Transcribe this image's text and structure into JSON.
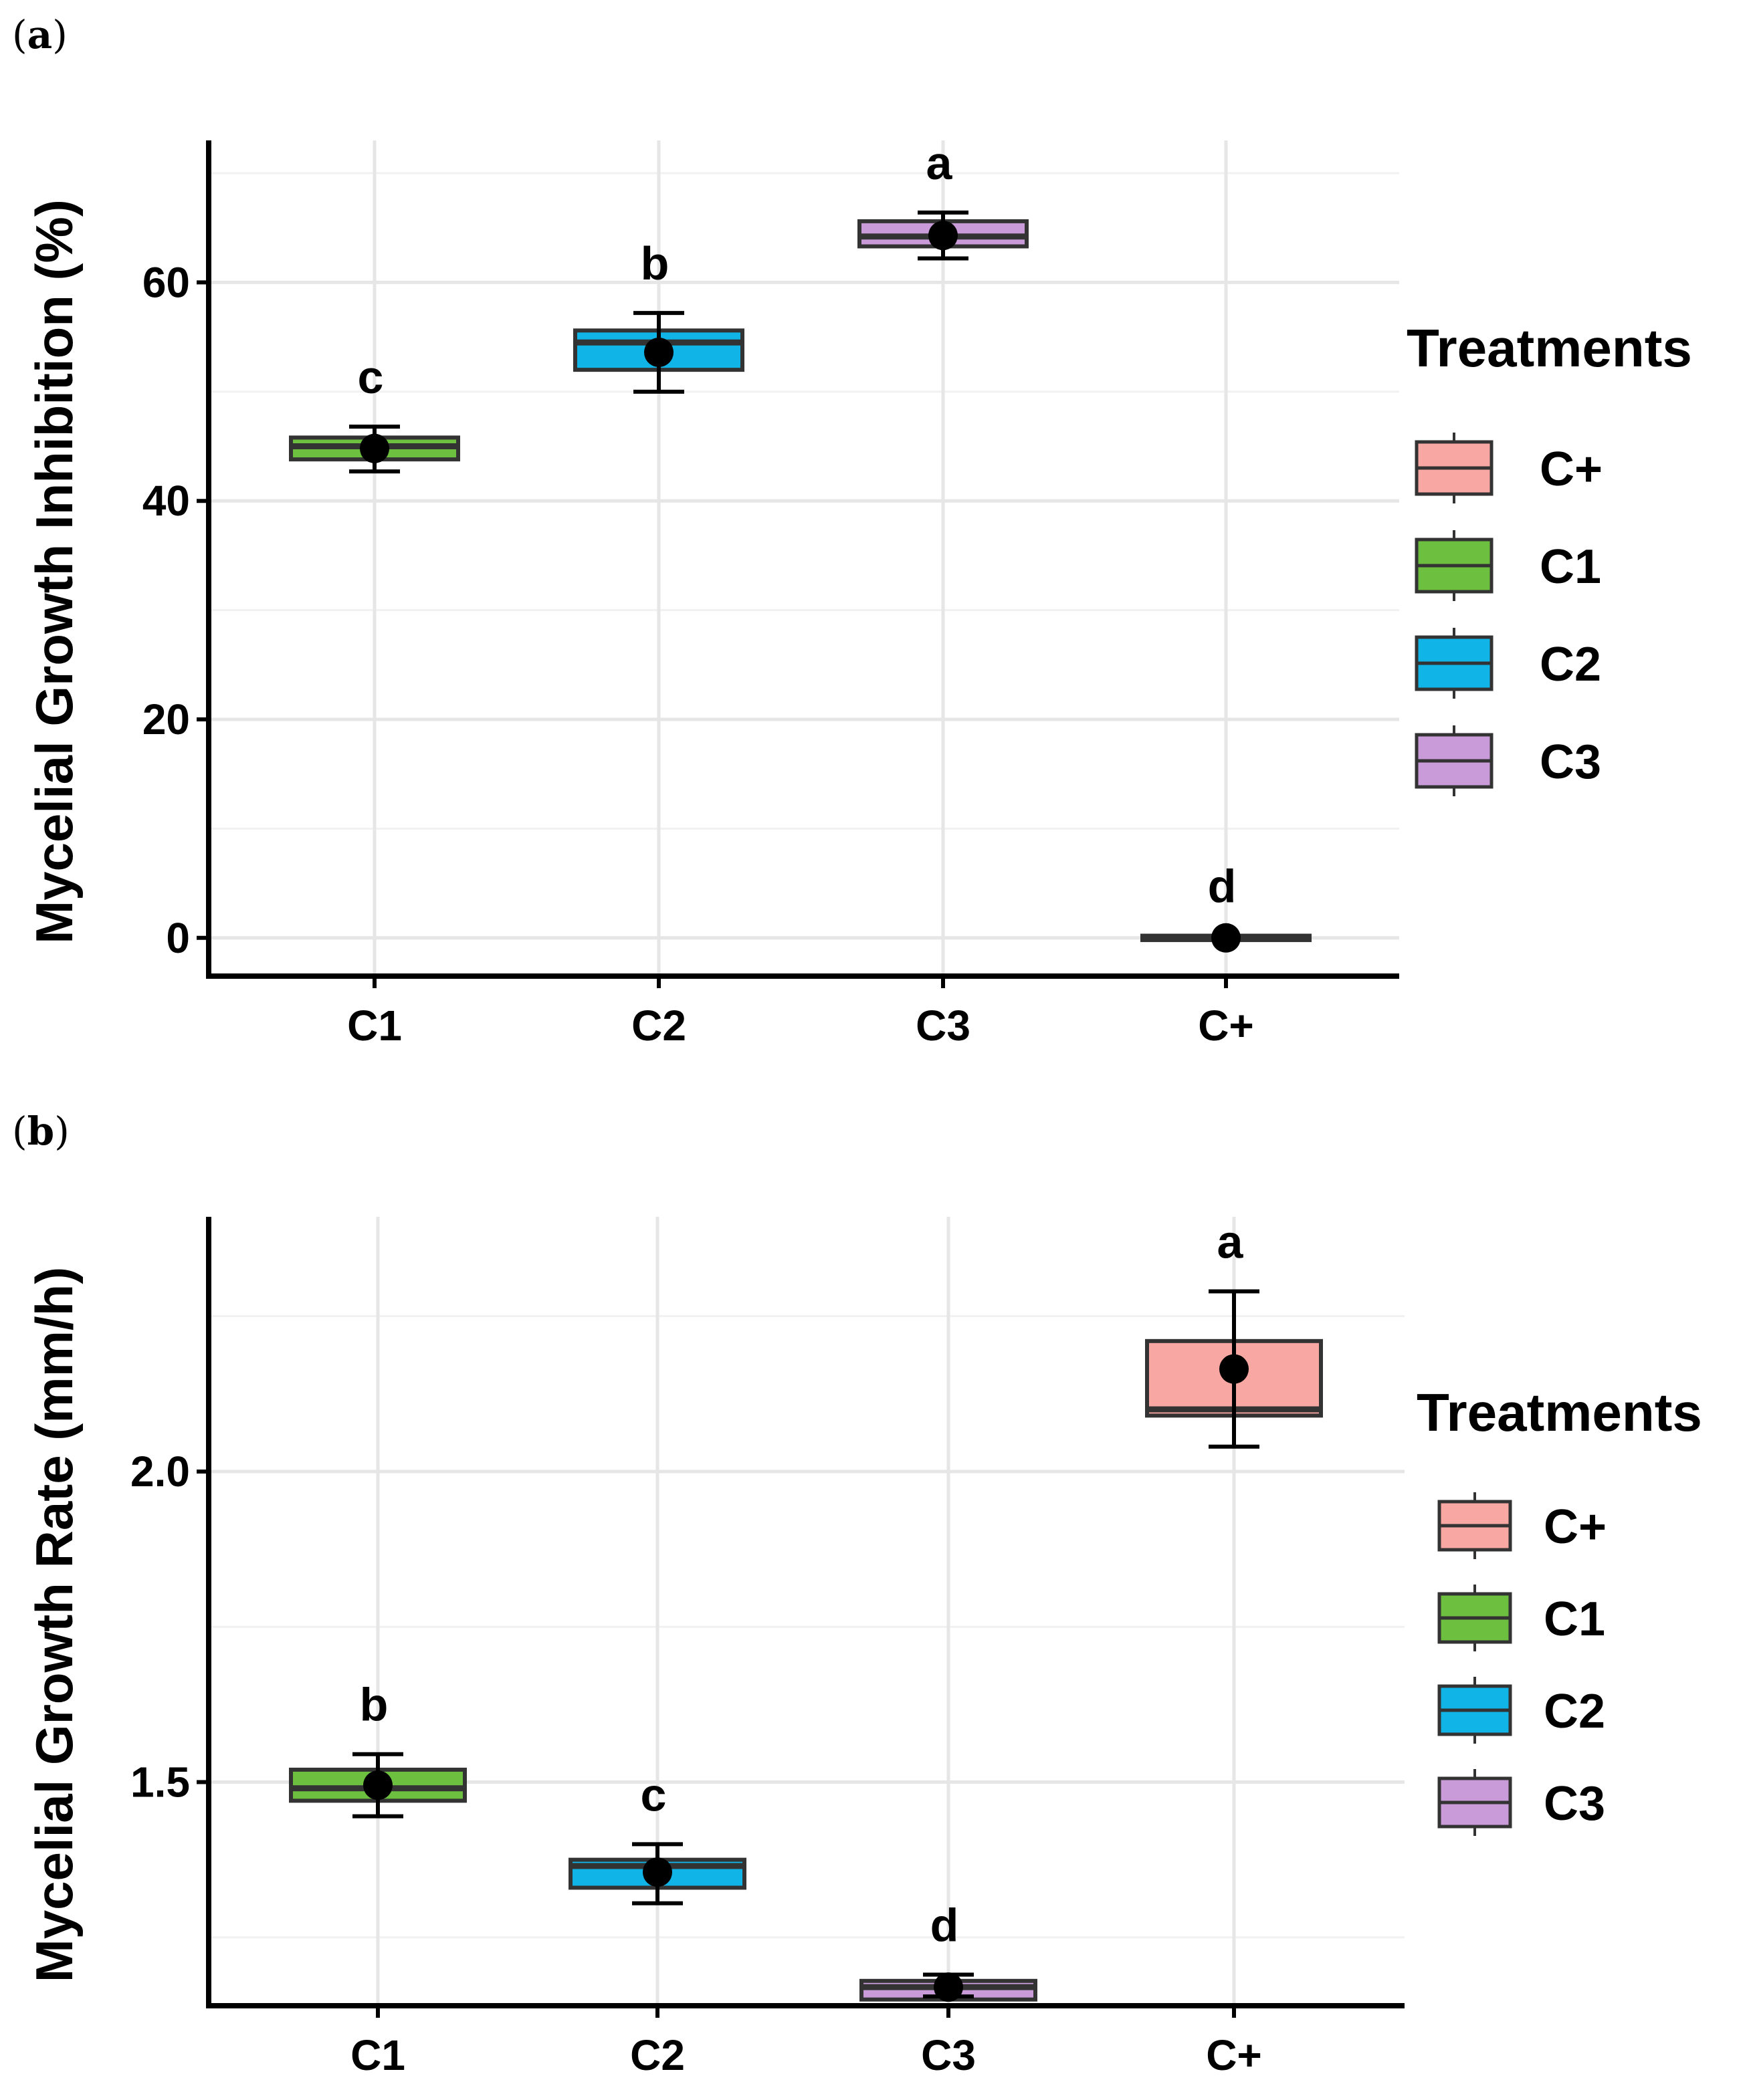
{
  "figure": {
    "panels": [
      {
        "label_paren_open": "(",
        "label": "a",
        "label_paren_close": ")"
      },
      {
        "label_paren_open": "(",
        "label": "b",
        "label_paren_close": ")"
      }
    ]
  },
  "colors": {
    "C+": "#f8a7a2",
    "C1": "#6cbf3f",
    "C2": "#10b4e6",
    "C3": "#c99bd8",
    "outline": "#333333",
    "point": "#000000"
  },
  "chart_data": [
    {
      "panel": "a",
      "type": "box",
      "title": "",
      "xlabel": "",
      "ylabel": "Mycelial Growth Inhibition (%)",
      "categories": [
        "C1",
        "C2",
        "C3",
        "C+"
      ],
      "ylim": [
        -3.5,
        73
      ],
      "yticks": [
        0,
        20,
        40,
        60
      ],
      "ytick_labels": [
        "0",
        "20",
        "40",
        "60"
      ],
      "grid": true,
      "boxes": [
        {
          "category": "C1",
          "q1": 43.8,
          "median": 45.0,
          "q3": 45.8,
          "mean": 44.8,
          "err_low": 42.7,
          "err_high": 46.8,
          "letter": "c"
        },
        {
          "category": "C2",
          "q1": 52.0,
          "median": 54.5,
          "q3": 55.6,
          "mean": 53.6,
          "err_low": 50.0,
          "err_high": 57.2,
          "letter": "b"
        },
        {
          "category": "C3",
          "q1": 63.3,
          "median": 64.2,
          "q3": 65.6,
          "mean": 64.3,
          "err_low": 62.2,
          "err_high": 66.4,
          "letter": "a"
        },
        {
          "category": "C+",
          "q1": -0.2,
          "median": 0.0,
          "q3": 0.2,
          "mean": 0.0,
          "err_low": 0.0,
          "err_high": 0.0,
          "letter": "d"
        }
      ],
      "legend": {
        "title": "Treatments",
        "position": "right",
        "items": [
          "C+",
          "C1",
          "C2",
          "C3"
        ]
      }
    },
    {
      "panel": "b",
      "type": "box",
      "title": "",
      "xlabel": "",
      "ylabel": "Mycelial Growth Rate (mm/h)",
      "categories": [
        "C1",
        "C2",
        "C3",
        "C+"
      ],
      "ylim": [
        1.14,
        2.41
      ],
      "yticks": [
        1.5,
        2.0
      ],
      "ytick_labels": [
        "1.5",
        "2.0"
      ],
      "grid": true,
      "boxes": [
        {
          "category": "C1",
          "q1": 1.47,
          "median": 1.49,
          "q3": 1.52,
          "mean": 1.495,
          "err_low": 1.445,
          "err_high": 1.545,
          "letter": "b"
        },
        {
          "category": "C2",
          "q1": 1.33,
          "median": 1.365,
          "q3": 1.375,
          "mean": 1.355,
          "err_low": 1.305,
          "err_high": 1.4,
          "letter": "c"
        },
        {
          "category": "C3",
          "q1": 1.15,
          "median": 1.17,
          "q3": 1.18,
          "mean": 1.17,
          "err_low": 1.155,
          "err_high": 1.19,
          "letter": "d"
        },
        {
          "category": "C+",
          "q1": 2.09,
          "median": 2.1,
          "q3": 2.21,
          "mean": 2.165,
          "err_low": 2.04,
          "err_high": 2.29,
          "letter": "a"
        }
      ],
      "legend": {
        "title": "Treatments",
        "position": "right",
        "items": [
          "C+",
          "C1",
          "C2",
          "C3"
        ]
      }
    }
  ]
}
